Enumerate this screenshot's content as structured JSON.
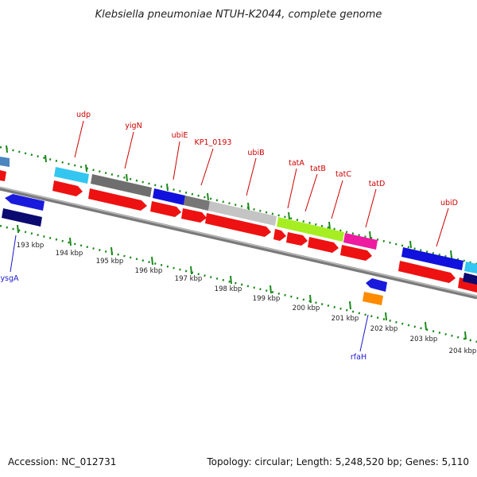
{
  "title": "Klebsiella pneumoniae NTUH-K2044, complete genome",
  "accession": "Accession: NC_012731",
  "topology": "Topology: circular; Length: 5,248,520 bp; Genes: 5,110",
  "colors": {
    "backbone": "#8c8c8c",
    "cds_red": "#ee1111",
    "label_red": "#cc0000",
    "label_blue": "#1a1acc",
    "tick_green": "#1a8a1a"
  },
  "scale_labels": [
    "193 kbp",
    "194 kbp",
    "195 kbp",
    "196 kbp",
    "197 kbp",
    "198 kbp",
    "199 kbp",
    "200 kbp",
    "201 kbp",
    "202 kbp",
    "203 kbp",
    "204 kbp"
  ],
  "gene_labels": [
    {
      "name": "udp",
      "color": "red"
    },
    {
      "name": "yigN",
      "color": "red"
    },
    {
      "name": "ubiE",
      "color": "red"
    },
    {
      "name": "KP1_0193",
      "color": "red"
    },
    {
      "name": "ubiB",
      "color": "red"
    },
    {
      "name": "tatA",
      "color": "red"
    },
    {
      "name": "tatB",
      "color": "red"
    },
    {
      "name": "tatC",
      "color": "red"
    },
    {
      "name": "tatD",
      "color": "red"
    },
    {
      "name": "ubiD",
      "color": "red"
    },
    {
      "name": "ysgA",
      "color": "blue"
    },
    {
      "name": "rfaH",
      "color": "blue"
    }
  ]
}
